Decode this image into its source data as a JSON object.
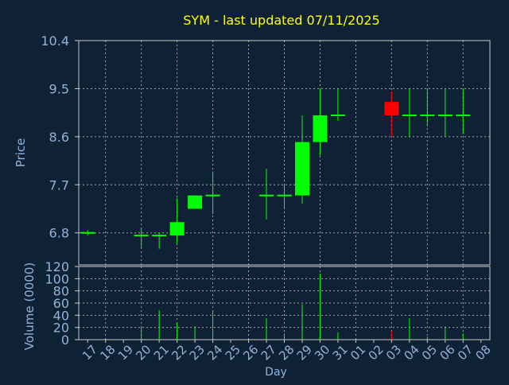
{
  "colors": {
    "background": "#0f2135",
    "axis_text": "#8fb4d9",
    "title": "#ffff00",
    "grid": "#c8c8c8",
    "up": "#00ff00",
    "down": "#ff0000"
  },
  "chart_data": [
    {
      "type": "candlestick",
      "title": "SYM - last updated 07/11/2025",
      "ylabel": "Price",
      "ylim": [
        6.2,
        10.4
      ],
      "y_ticks": [
        "10.4",
        "9.5",
        "8.6",
        "7.7",
        "6.8"
      ],
      "y_tick_values": [
        10.4,
        9.5,
        8.6,
        7.7,
        6.8
      ],
      "grid": true,
      "candles": [
        {
          "x": "17",
          "open": 6.8,
          "high": 6.85,
          "low": 6.75,
          "close": 6.8
        },
        {
          "x": "20",
          "open": 6.75,
          "high": 6.87,
          "low": 6.52,
          "close": 6.75
        },
        {
          "x": "21",
          "open": 6.75,
          "high": 6.81,
          "low": 6.5,
          "close": 6.75
        },
        {
          "x": "22",
          "open": 6.75,
          "high": 7.45,
          "low": 6.6,
          "close": 7.0
        },
        {
          "x": "23",
          "open": 7.25,
          "high": 7.5,
          "low": 7.25,
          "close": 7.5
        },
        {
          "x": "24",
          "open": 7.5,
          "high": 7.95,
          "low": 7.15,
          "close": 7.5
        },
        {
          "x": "27",
          "open": 7.5,
          "high": 8.0,
          "low": 7.05,
          "close": 7.5
        },
        {
          "x": "28",
          "open": 7.5,
          "high": 7.7,
          "low": 7.25,
          "close": 7.5
        },
        {
          "x": "29",
          "open": 7.5,
          "high": 9.0,
          "low": 7.35,
          "close": 8.5
        },
        {
          "x": "30",
          "open": 8.5,
          "high": 9.5,
          "low": 8.25,
          "close": 9.0
        },
        {
          "x": "31",
          "open": 9.0,
          "high": 9.5,
          "low": 8.9,
          "close": 9.0
        },
        {
          "x": "03",
          "open": 9.25,
          "high": 9.45,
          "low": 8.6,
          "close": 9.0
        },
        {
          "x": "04",
          "open": 9.0,
          "high": 9.5,
          "low": 8.6,
          "close": 9.0
        },
        {
          "x": "05",
          "open": 9.0,
          "high": 9.5,
          "low": 8.8,
          "close": 9.0
        },
        {
          "x": "06",
          "open": 9.0,
          "high": 9.5,
          "low": 8.6,
          "close": 9.0
        },
        {
          "x": "07",
          "open": 9.0,
          "high": 9.5,
          "low": 8.65,
          "close": 9.0
        }
      ]
    },
    {
      "type": "bar",
      "xlabel": "Day",
      "ylabel": "Volume (0000)",
      "ylim": [
        0,
        120
      ],
      "y_ticks": [
        "120",
        "100",
        "80",
        "60",
        "40",
        "20",
        "0"
      ],
      "y_tick_values": [
        120,
        100,
        80,
        60,
        40,
        20,
        0
      ],
      "grid": true,
      "categories": [
        "17",
        "18",
        "19",
        "20",
        "21",
        "22",
        "23",
        "24",
        "25",
        "26",
        "27",
        "28",
        "29",
        "30",
        "31",
        "01",
        "02",
        "03",
        "04",
        "05",
        "06",
        "07",
        "08"
      ],
      "values": [
        0,
        0,
        0,
        20,
        48,
        28,
        22,
        48,
        0,
        0,
        35,
        10,
        58,
        108,
        12,
        0,
        0,
        14,
        35,
        5,
        22,
        10,
        0
      ],
      "bar_colors": [
        "up",
        "up",
        "up",
        "up",
        "up",
        "up",
        "up",
        "up",
        "up",
        "up",
        "up",
        "up",
        "up",
        "up",
        "up",
        "up",
        "up",
        "down",
        "up",
        "up",
        "up",
        "up",
        "up"
      ]
    }
  ]
}
